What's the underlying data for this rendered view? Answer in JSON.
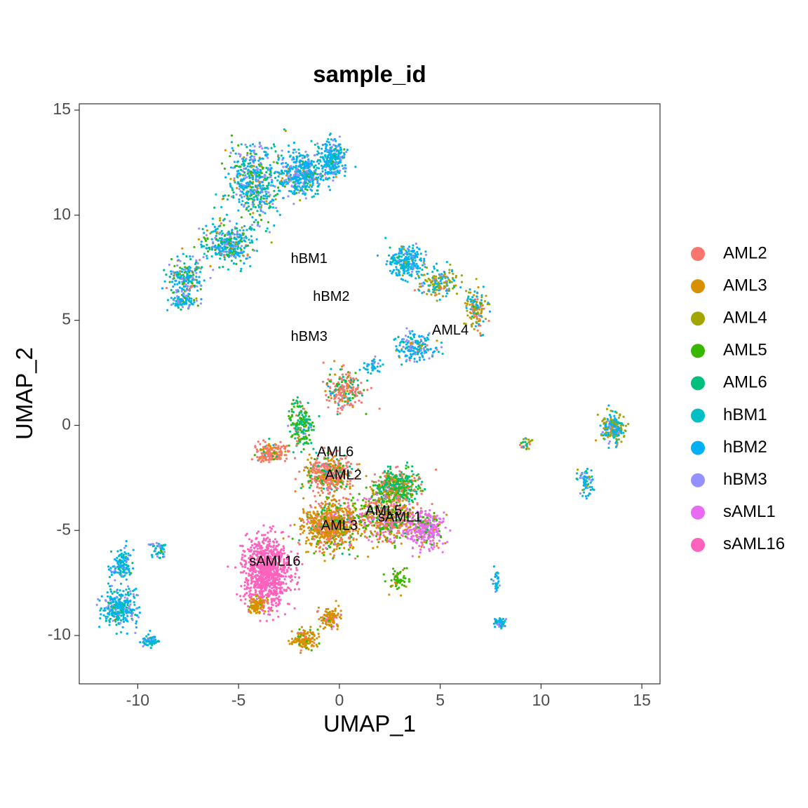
{
  "chart_data": {
    "type": "scatter",
    "title": "sample_id",
    "xlabel": "UMAP_1",
    "ylabel": "UMAP_2",
    "xlim": [
      -12.9,
      15.9
    ],
    "ylim": [
      -12.3,
      15.3
    ],
    "x_ticks": [
      -10,
      -5,
      0,
      5,
      10,
      15
    ],
    "x_tick_labels": [
      "-10",
      "-5",
      "0",
      "5",
      "10",
      "15"
    ],
    "y_ticks": [
      -10,
      -5,
      0,
      5,
      10,
      15
    ],
    "y_tick_labels": [
      "-10",
      "-5",
      "0",
      "5",
      "10",
      "15"
    ],
    "grid": false,
    "legend_position": "right",
    "series": [
      {
        "name": "AML2",
        "color": "#F8766D"
      },
      {
        "name": "AML3",
        "color": "#D89000"
      },
      {
        "name": "AML4",
        "color": "#A3A500"
      },
      {
        "name": "AML5",
        "color": "#39B600"
      },
      {
        "name": "AML6",
        "color": "#00BF7D"
      },
      {
        "name": "hBM1",
        "color": "#00BFC4"
      },
      {
        "name": "hBM2",
        "color": "#00B0F6"
      },
      {
        "name": "hBM3",
        "color": "#9590FF"
      },
      {
        "name": "sAML1",
        "color": "#E76BF3"
      },
      {
        "name": "sAML16",
        "color": "#FF62BC"
      }
    ],
    "clusters": [
      {
        "cx": -4.2,
        "cy": 11.5,
        "sx": 1.2,
        "sy": 1.6,
        "n": 520,
        "mix": [
          0,
          0.02,
          0.03,
          0.12,
          0.18,
          0.12,
          0.33,
          0.2,
          0,
          0
        ]
      },
      {
        "cx": -1.8,
        "cy": 12.0,
        "sx": 1.0,
        "sy": 0.9,
        "n": 420,
        "mix": [
          0,
          0.02,
          0.02,
          0.04,
          0.08,
          0.14,
          0.45,
          0.25,
          0,
          0
        ]
      },
      {
        "cx": -0.3,
        "cy": 12.7,
        "sx": 0.6,
        "sy": 0.8,
        "n": 260,
        "mix": [
          0,
          0,
          0,
          0.02,
          0.05,
          0.2,
          0.55,
          0.18,
          0,
          0
        ]
      },
      {
        "cx": -5.5,
        "cy": 8.6,
        "sx": 1.1,
        "sy": 0.9,
        "n": 340,
        "mix": [
          0.02,
          0.02,
          0.03,
          0.12,
          0.12,
          0.15,
          0.34,
          0.2,
          0,
          0
        ]
      },
      {
        "cx": -7.6,
        "cy": 7.0,
        "sx": 0.8,
        "sy": 0.9,
        "n": 200,
        "mix": [
          0.04,
          0.03,
          0.03,
          0.15,
          0.14,
          0.12,
          0.29,
          0.2,
          0,
          0
        ]
      },
      {
        "cx": -7.8,
        "cy": 5.9,
        "sx": 0.6,
        "sy": 0.3,
        "n": 80,
        "mix": [
          0,
          0,
          0,
          0.05,
          0.1,
          0.2,
          0.35,
          0.3,
          0,
          0
        ]
      },
      {
        "cx": 3.4,
        "cy": 7.8,
        "sx": 0.9,
        "sy": 0.7,
        "n": 220,
        "mix": [
          0,
          0,
          0.05,
          0,
          0.05,
          0.2,
          0.65,
          0.05,
          0,
          0
        ]
      },
      {
        "cx": 4.9,
        "cy": 6.8,
        "sx": 0.8,
        "sy": 0.6,
        "n": 160,
        "mix": [
          0.05,
          0.05,
          0.5,
          0,
          0.05,
          0.05,
          0.25,
          0.05,
          0,
          0
        ]
      },
      {
        "cx": 6.8,
        "cy": 5.6,
        "sx": 0.45,
        "sy": 0.9,
        "n": 140,
        "mix": [
          0.15,
          0.15,
          0.35,
          0.03,
          0.05,
          0.05,
          0.2,
          0.02,
          0,
          0
        ]
      },
      {
        "cx": 3.8,
        "cy": 3.7,
        "sx": 0.9,
        "sy": 0.6,
        "n": 170,
        "mix": [
          0.04,
          0.04,
          0.05,
          0,
          0.05,
          0.15,
          0.5,
          0.17,
          0,
          0
        ]
      },
      {
        "cx": 1.7,
        "cy": 2.9,
        "sx": 0.4,
        "sy": 0.35,
        "n": 40,
        "mix": [
          0,
          0,
          0,
          0,
          0,
          0.25,
          0.6,
          0.15,
          0,
          0
        ]
      },
      {
        "cx": 0.3,
        "cy": 1.7,
        "sx": 0.9,
        "sy": 0.9,
        "n": 220,
        "mix": [
          0.6,
          0.08,
          0,
          0.08,
          0.14,
          0.03,
          0.05,
          0.02,
          0,
          0
        ]
      },
      {
        "cx": -1.9,
        "cy": 0.0,
        "sx": 0.55,
        "sy": 1.0,
        "n": 180,
        "mix": [
          0.08,
          0.05,
          0,
          0.37,
          0.45,
          0.02,
          0.02,
          0.01,
          0,
          0
        ]
      },
      {
        "cx": -3.3,
        "cy": -1.3,
        "sx": 0.8,
        "sy": 0.45,
        "n": 170,
        "mix": [
          0.6,
          0.3,
          0,
          0.02,
          0.06,
          0,
          0.02,
          0,
          0,
          0
        ]
      },
      {
        "cx": -0.5,
        "cy": -2.3,
        "sx": 1.1,
        "sy": 0.8,
        "n": 430,
        "mix": [
          0.55,
          0.2,
          0,
          0.1,
          0.12,
          0.01,
          0.01,
          0.01,
          0,
          0
        ]
      },
      {
        "cx": 2.8,
        "cy": -2.9,
        "sx": 1.0,
        "sy": 0.7,
        "n": 440,
        "mix": [
          0.18,
          0.12,
          0,
          0.3,
          0.4,
          0,
          0,
          0,
          0,
          0
        ]
      },
      {
        "cx": -0.4,
        "cy": -4.8,
        "sx": 1.3,
        "sy": 1.1,
        "n": 720,
        "mix": [
          0.26,
          0.55,
          0,
          0.13,
          0.04,
          0,
          0,
          0,
          0.02,
          0
        ]
      },
      {
        "cx": 2.3,
        "cy": -4.4,
        "sx": 1.4,
        "sy": 1.0,
        "n": 620,
        "mix": [
          0.28,
          0.22,
          0,
          0.28,
          0.02,
          0,
          0,
          0,
          0.2,
          0
        ]
      },
      {
        "cx": 4.3,
        "cy": -4.9,
        "sx": 0.8,
        "sy": 0.8,
        "n": 320,
        "mix": [
          0.08,
          0.05,
          0,
          0.15,
          0.02,
          0,
          0,
          0,
          0.7,
          0
        ]
      },
      {
        "cx": 2.9,
        "cy": -7.4,
        "sx": 0.45,
        "sy": 0.45,
        "n": 60,
        "mix": [
          0,
          0.1,
          0,
          0.9,
          0,
          0,
          0,
          0,
          0,
          0
        ]
      },
      {
        "cx": -3.6,
        "cy": -7.0,
        "sx": 1.0,
        "sy": 1.5,
        "n": 950,
        "mix": [
          0,
          0,
          0,
          0,
          0,
          0,
          0,
          0,
          0,
          1
        ]
      },
      {
        "cx": -4.1,
        "cy": -8.6,
        "sx": 0.45,
        "sy": 0.35,
        "n": 90,
        "mix": [
          0.05,
          0.9,
          0,
          0.05,
          0,
          0,
          0,
          0,
          0,
          0
        ]
      },
      {
        "cx": -1.7,
        "cy": -10.2,
        "sx": 0.6,
        "sy": 0.4,
        "n": 150,
        "mix": [
          0.05,
          0.8,
          0,
          0.15,
          0,
          0,
          0,
          0,
          0,
          0
        ]
      },
      {
        "cx": -0.4,
        "cy": -9.2,
        "sx": 0.5,
        "sy": 0.45,
        "n": 110,
        "mix": [
          0.05,
          0.75,
          0,
          0.1,
          0,
          0,
          0,
          0,
          0,
          0.1
        ]
      },
      {
        "cx": -10.8,
        "cy": -6.6,
        "sx": 0.5,
        "sy": 0.6,
        "n": 130,
        "mix": [
          0,
          0,
          0,
          0.02,
          0.08,
          0.25,
          0.45,
          0.2,
          0,
          0
        ]
      },
      {
        "cx": -10.9,
        "cy": -8.7,
        "sx": 0.8,
        "sy": 0.9,
        "n": 300,
        "mix": [
          0,
          0,
          0,
          0.02,
          0.08,
          0.25,
          0.45,
          0.2,
          0,
          0
        ]
      },
      {
        "cx": -9.4,
        "cy": -10.3,
        "sx": 0.4,
        "sy": 0.25,
        "n": 70,
        "mix": [
          0,
          0,
          0,
          0.02,
          0.08,
          0.25,
          0.45,
          0.2,
          0,
          0
        ]
      },
      {
        "cx": -9.0,
        "cy": -5.9,
        "sx": 0.4,
        "sy": 0.3,
        "n": 50,
        "mix": [
          0,
          0,
          0,
          0.02,
          0.08,
          0.25,
          0.45,
          0.2,
          0,
          0
        ]
      },
      {
        "cx": 13.6,
        "cy": -0.1,
        "sx": 0.5,
        "sy": 0.6,
        "n": 220,
        "mix": [
          0,
          0.05,
          0.3,
          0.02,
          0.08,
          0.15,
          0.3,
          0.1,
          0,
          0
        ]
      },
      {
        "cx": 12.2,
        "cy": -2.7,
        "sx": 0.3,
        "sy": 0.7,
        "n": 70,
        "mix": [
          0,
          0,
          0.05,
          0,
          0.05,
          0.3,
          0.4,
          0.2,
          0,
          0
        ]
      },
      {
        "cx": 8.0,
        "cy": -9.4,
        "sx": 0.3,
        "sy": 0.2,
        "n": 60,
        "mix": [
          0,
          0,
          0,
          0,
          0.05,
          0.3,
          0.55,
          0.1,
          0,
          0
        ]
      },
      {
        "cx": 7.8,
        "cy": -7.4,
        "sx": 0.15,
        "sy": 0.7,
        "n": 30,
        "mix": [
          0,
          0,
          0,
          0,
          0.05,
          0.3,
          0.55,
          0.1,
          0,
          0
        ]
      },
      {
        "cx": 9.3,
        "cy": -0.9,
        "sx": 0.3,
        "sy": 0.3,
        "n": 28,
        "mix": [
          0.35,
          0,
          0.2,
          0.2,
          0.15,
          0,
          0.1,
          0,
          0,
          0
        ]
      }
    ],
    "annotations": [
      {
        "text": "hBM1",
        "x": -1.5,
        "y": 7.9
      },
      {
        "text": "hBM2",
        "x": -0.4,
        "y": 6.1
      },
      {
        "text": "hBM3",
        "x": -1.5,
        "y": 4.2
      },
      {
        "text": "AML4",
        "x": 5.5,
        "y": 4.5
      },
      {
        "text": "AML6",
        "x": -0.2,
        "y": -1.3
      },
      {
        "text": "AML2",
        "x": 0.2,
        "y": -2.4
      },
      {
        "text": "AML5",
        "x": 2.2,
        "y": -4.1
      },
      {
        "text": "sAML1",
        "x": 3.0,
        "y": -4.4
      },
      {
        "text": "AML3",
        "x": 0.0,
        "y": -4.8
      },
      {
        "text": "sAML16",
        "x": -3.2,
        "y": -6.5
      }
    ]
  }
}
